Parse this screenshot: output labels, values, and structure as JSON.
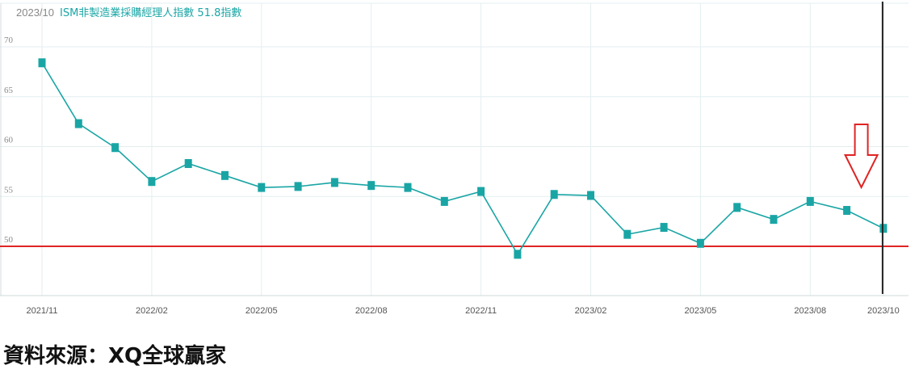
{
  "chart_data": {
    "type": "line",
    "header": {
      "date": "2023/10",
      "series_label": "ISM非製造業採購經理人指數 51.8指數"
    },
    "x": [
      "2021/11",
      "2021/12",
      "2022/01",
      "2022/02",
      "2022/03",
      "2022/04",
      "2022/05",
      "2022/06",
      "2022/07",
      "2022/08",
      "2022/09",
      "2022/10",
      "2022/11",
      "2022/12",
      "2023/01",
      "2023/02",
      "2023/03",
      "2023/04",
      "2023/05",
      "2023/06",
      "2023/07",
      "2023/08",
      "2023/09",
      "2023/10"
    ],
    "series": [
      {
        "name": "ISM非製造業採購經理人指數",
        "values": [
          68.4,
          62.3,
          59.9,
          56.5,
          58.3,
          57.1,
          55.9,
          56.0,
          56.4,
          56.1,
          55.9,
          54.5,
          55.5,
          49.2,
          55.2,
          55.1,
          51.2,
          51.9,
          50.3,
          53.9,
          52.7,
          54.5,
          53.6,
          51.8
        ]
      }
    ],
    "tick_labels_x": [
      "2021/11",
      "2022/02",
      "2022/05",
      "2022/08",
      "2022/11",
      "2023/02",
      "2023/05",
      "2023/08",
      "2023/10"
    ],
    "tick_labels_y": [
      "50",
      "55",
      "60",
      "65",
      "70"
    ],
    "ylim": [
      45,
      73
    ],
    "reference_line": {
      "value": 50,
      "color": "#e02424"
    },
    "cursor": {
      "x": "2023/10",
      "color": "#222222"
    },
    "annotation": {
      "kind": "down-arrow",
      "x": "2023/09",
      "color": "#e02424"
    },
    "colors": {
      "series": "#1aa5a5",
      "grid": "#e4eef0",
      "tick_text": "#8a8a8a",
      "header_text": "#1aa5a5"
    },
    "grid": true
  },
  "footer": {
    "source": "資料來源：XQ全球贏家"
  }
}
